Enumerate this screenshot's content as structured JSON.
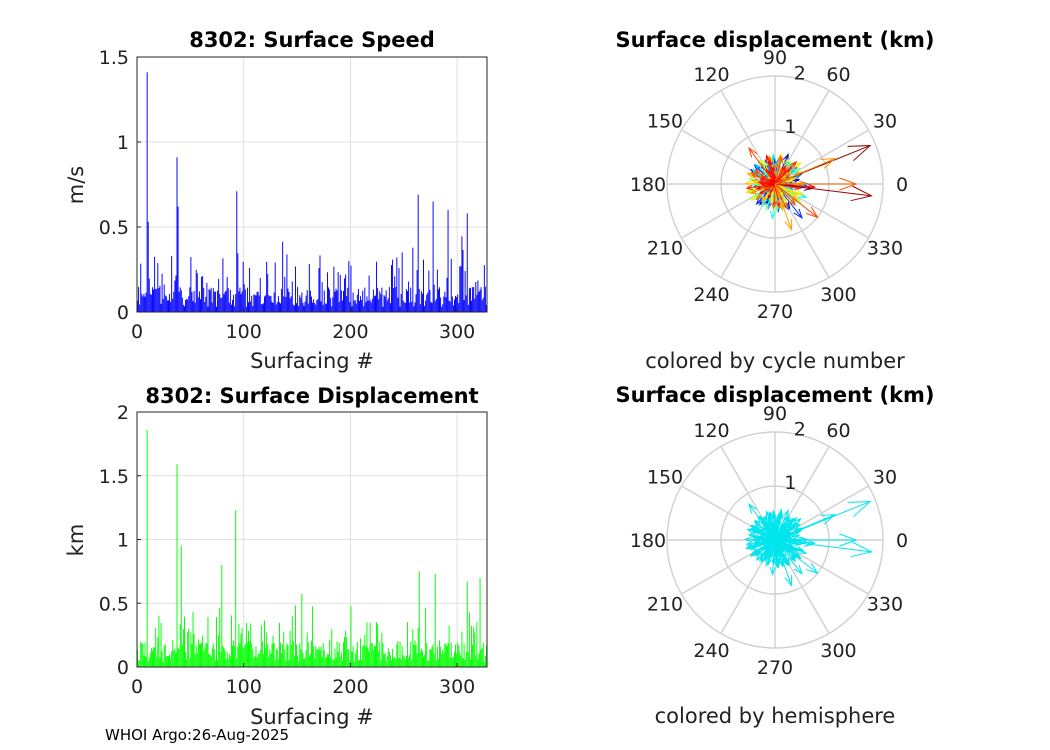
{
  "footer": "WHOI Argo:26-Aug-2025",
  "chart_data": [
    {
      "id": "speed",
      "type": "bar",
      "title": "8302: Surface Speed",
      "xlabel": "Surfacing #",
      "ylabel": "m/s",
      "xlim": [
        0,
        328
      ],
      "ylim": [
        0,
        1.5
      ],
      "xticks": [
        0,
        100,
        200,
        300
      ],
      "xtick_labels": [
        "0",
        "100",
        "200",
        "300"
      ],
      "yticks": [
        0,
        0.5,
        1,
        1.5
      ],
      "ytick_labels": [
        "0",
        "0.5",
        "1",
        "1.5"
      ],
      "grid": true,
      "color": "#0000ff",
      "peaks": [
        [
          10,
          1.41
        ],
        [
          11,
          0.53
        ],
        [
          38,
          0.91
        ],
        [
          39,
          0.62
        ],
        [
          94,
          0.71
        ],
        [
          264,
          0.69
        ],
        [
          278,
          0.65
        ],
        [
          292,
          0.6
        ],
        [
          310,
          0.58
        ]
      ],
      "n": 328
    },
    {
      "id": "displacement",
      "type": "bar",
      "title": "8302: Surface Displacement",
      "xlabel": "Surfacing #",
      "ylabel": "km",
      "xlim": [
        0,
        328
      ],
      "ylim": [
        0,
        2
      ],
      "xticks": [
        0,
        100,
        200,
        300
      ],
      "xtick_labels": [
        "0",
        "100",
        "200",
        "300"
      ],
      "yticks": [
        0,
        0.5,
        1,
        1.5,
        2
      ],
      "ytick_labels": [
        "0",
        "0.5",
        "1",
        "1.5",
        "2"
      ],
      "grid": true,
      "color": "#00ff00",
      "peaks": [
        [
          10,
          1.86
        ],
        [
          38,
          1.59
        ],
        [
          42,
          0.95
        ],
        [
          93,
          1.23
        ],
        [
          80,
          0.8
        ],
        [
          265,
          0.75
        ],
        [
          280,
          0.73
        ],
        [
          310,
          0.67
        ],
        [
          322,
          0.7
        ]
      ],
      "n": 328
    },
    {
      "id": "polar-cycle",
      "type": "polar-vectors",
      "title": "Surface displacement (km)",
      "subtitle": "colored by cycle number",
      "rmax": 2,
      "rings": [
        1,
        2
      ],
      "ring_labels": [
        "1",
        "2"
      ],
      "angles": [
        0,
        30,
        60,
        90,
        120,
        150,
        180,
        210,
        240,
        270,
        300,
        330
      ],
      "angle_labels": [
        "0",
        "30",
        "60",
        "90",
        "120",
        "150",
        "180",
        "210",
        "240",
        "270",
        "300",
        "330"
      ],
      "colormap": "jet",
      "highlight_vectors": [
        [
          1.9,
          22,
          "#8b0000"
        ],
        [
          1.8,
          353,
          "#a00000"
        ],
        [
          1.5,
          0,
          "#ff6000"
        ],
        [
          1.0,
          322,
          "#ff4000"
        ],
        [
          1.2,
          23,
          "#ff8c00"
        ],
        [
          0.9,
          290,
          "#ffa000"
        ]
      ]
    },
    {
      "id": "polar-hemisphere",
      "type": "polar-vectors",
      "title": "Surface displacement (km)",
      "subtitle": "colored by hemisphere",
      "rmax": 2,
      "rings": [
        1,
        2
      ],
      "ring_labels": [
        "1",
        "2"
      ],
      "angles": [
        0,
        30,
        60,
        90,
        120,
        150,
        180,
        210,
        240,
        270,
        300,
        330
      ],
      "angle_labels": [
        "0",
        "30",
        "60",
        "90",
        "120",
        "150",
        "180",
        "210",
        "240",
        "270",
        "300",
        "330"
      ],
      "color": "#00e5ee",
      "highlight_vectors": [
        [
          1.9,
          22
        ],
        [
          1.8,
          353
        ],
        [
          1.5,
          0
        ],
        [
          1.0,
          322
        ],
        [
          1.2,
          23
        ],
        [
          0.9,
          290
        ]
      ]
    }
  ]
}
